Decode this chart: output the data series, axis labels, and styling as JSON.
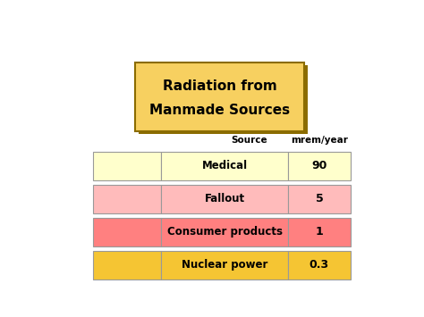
{
  "title_line1": "Radiation from",
  "title_line2": "Manmade Sources",
  "title_bg_top": "#F7D060",
  "title_bg_bot": "#F0A800",
  "title_border_color": "#8B6C00",
  "col_header_source": "Source",
  "col_header_value": "mrem/year",
  "rows": [
    {
      "label": "Medical",
      "value": "90",
      "row_bg": "#FFFFCC",
      "icon_bg": "#FFFFCC"
    },
    {
      "label": "Fallout",
      "value": "5",
      "row_bg": "#FFBBBB",
      "icon_bg": "#FFBBBB"
    },
    {
      "label": "Consumer products",
      "value": "1",
      "row_bg": "#FF8080",
      "icon_bg": "#FF8080"
    },
    {
      "label": "Nuclear power",
      "value": "0.3",
      "row_bg": "#F5C533",
      "icon_bg": "#F5C533"
    }
  ],
  "bg_color": "#FFFFFF",
  "text_color": "#000000",
  "border_color": "#999999",
  "title_font_size": 11,
  "header_font_size": 7.5,
  "row_font_size": 8.5,
  "row_value_font_size": 9
}
